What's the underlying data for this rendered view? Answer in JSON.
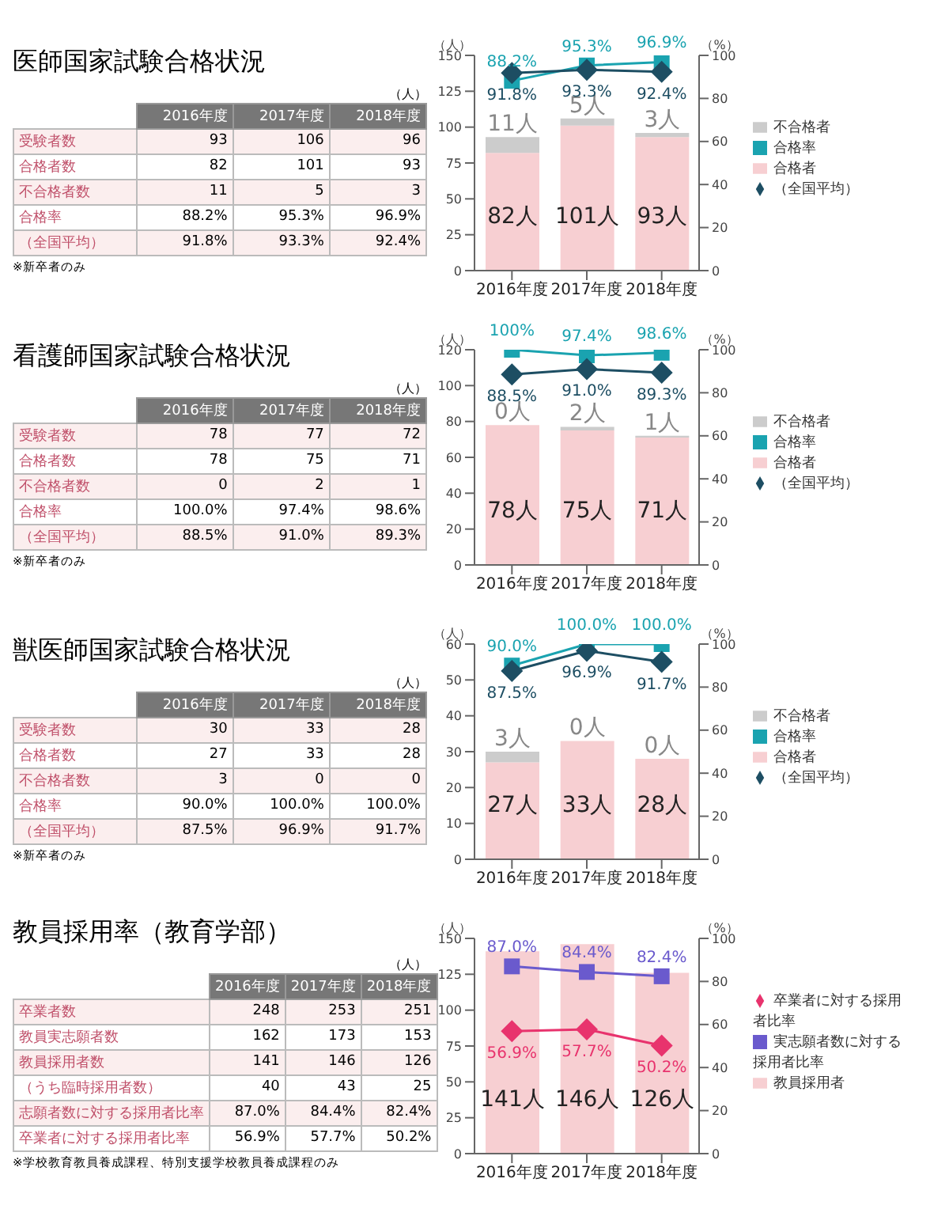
{
  "chart_data": [
    {
      "type": "other",
      "title": "医師国家試験合格状況",
      "categories": [
        "2016年度",
        "2017年度",
        "2018年度"
      ],
      "y_categories": [
        "受験者数",
        "合格者数",
        "不合格者数",
        "合格率",
        "（全国平均）"
      ],
      "cells": [
        [
          "93",
          "106",
          "96"
        ],
        [
          "82",
          "101",
          "93"
        ],
        [
          "11",
          "5",
          "3"
        ],
        [
          "88.2%",
          "95.3%",
          "96.9%"
        ],
        [
          "91.8%",
          "93.3%",
          "92.4%"
        ]
      ],
      "annotations": [
        "（人）",
        "※新卒者のみ"
      ]
    },
    {
      "type": "bar",
      "stacked": true,
      "categories": [
        "2016年度",
        "2017年度",
        "2018年度"
      ],
      "ylabel": "（人）",
      "y2label": "（%）",
      "ylim": [
        0,
        150
      ],
      "yticks": [
        0,
        25,
        50,
        75,
        100,
        125,
        150
      ],
      "y2lim": [
        0,
        100
      ],
      "y2ticks": [
        0,
        20,
        40,
        60,
        80,
        100
      ],
      "legend": "right",
      "series": [
        {
          "name": "合格率",
          "type": "line",
          "axis": "y2",
          "color": "#1aa3b0",
          "marker": "square",
          "values": [
            88.2,
            95.3,
            96.9
          ],
          "value_labels": [
            "88.2%",
            "95.3%",
            "96.9%"
          ]
        },
        {
          "name": "（全国平均）",
          "type": "line",
          "axis": "y2",
          "color": "#1d4e63",
          "marker": "diamond",
          "values": [
            91.8,
            93.3,
            92.4
          ],
          "value_labels": [
            "91.8%",
            "93.3%",
            "92.4%"
          ]
        },
        {
          "name": "合格者",
          "type": "bar",
          "color": "#f7cfd2",
          "values": [
            82,
            101,
            93
          ],
          "value_labels": [
            "82人",
            "101人",
            "93人"
          ]
        },
        {
          "name": "不合格者",
          "type": "bar",
          "color": "#cccccc",
          "values": [
            11,
            5,
            3
          ],
          "value_labels": [
            "11人",
            "5人",
            "3人"
          ]
        }
      ]
    },
    {
      "type": "other",
      "title": "看護師国家試験合格状況",
      "categories": [
        "2016年度",
        "2017年度",
        "2018年度"
      ],
      "y_categories": [
        "受験者数",
        "合格者数",
        "不合格者数",
        "合格率",
        "（全国平均）"
      ],
      "cells": [
        [
          "78",
          "77",
          "72"
        ],
        [
          "78",
          "75",
          "71"
        ],
        [
          "0",
          "2",
          "1"
        ],
        [
          "100.0%",
          "97.4%",
          "98.6%"
        ],
        [
          "88.5%",
          "91.0%",
          "89.3%"
        ]
      ],
      "annotations": [
        "（人）",
        "※新卒者のみ"
      ]
    },
    {
      "type": "bar",
      "stacked": true,
      "categories": [
        "2016年度",
        "2017年度",
        "2018年度"
      ],
      "ylabel": "（人）",
      "y2label": "（%）",
      "ylim": [
        0,
        120
      ],
      "yticks": [
        0,
        20,
        40,
        60,
        80,
        100,
        120
      ],
      "y2lim": [
        0,
        100
      ],
      "y2ticks": [
        0,
        20,
        40,
        60,
        80,
        100
      ],
      "legend": "right",
      "series": [
        {
          "name": "合格率",
          "type": "line",
          "axis": "y2",
          "color": "#1aa3b0",
          "marker": "square",
          "values": [
            100,
            97.4,
            98.6
          ],
          "value_labels": [
            "100%",
            "97.4%",
            "98.6%"
          ]
        },
        {
          "name": "（全国平均）",
          "type": "line",
          "axis": "y2",
          "color": "#1d4e63",
          "marker": "diamond",
          "values": [
            88.5,
            91.0,
            89.3
          ],
          "value_labels": [
            "88.5%",
            "91.0%",
            "89.3%"
          ]
        },
        {
          "name": "合格者",
          "type": "bar",
          "color": "#f7cfd2",
          "values": [
            78,
            75,
            71
          ],
          "value_labels": [
            "78人",
            "75人",
            "71人"
          ]
        },
        {
          "name": "不合格者",
          "type": "bar",
          "color": "#cccccc",
          "values": [
            0,
            2,
            1
          ],
          "value_labels": [
            "0人",
            "2人",
            "1人"
          ]
        }
      ]
    },
    {
      "type": "other",
      "title": "獣医師国家試験合格状況",
      "categories": [
        "2016年度",
        "2017年度",
        "2018年度"
      ],
      "y_categories": [
        "受験者数",
        "合格者数",
        "不合格者数",
        "合格率",
        "（全国平均）"
      ],
      "cells": [
        [
          "30",
          "33",
          "28"
        ],
        [
          "27",
          "33",
          "28"
        ],
        [
          "3",
          "0",
          "0"
        ],
        [
          "90.0%",
          "100.0%",
          "100.0%"
        ],
        [
          "87.5%",
          "96.9%",
          "91.7%"
        ]
      ],
      "annotations": [
        "（人）",
        "※新卒者のみ"
      ]
    },
    {
      "type": "bar",
      "stacked": true,
      "categories": [
        "2016年度",
        "2017年度",
        "2018年度"
      ],
      "ylabel": "（人）",
      "y2label": "（%）",
      "ylim": [
        0,
        60
      ],
      "yticks": [
        0,
        10,
        20,
        30,
        40,
        50,
        60
      ],
      "y2lim": [
        0,
        100
      ],
      "y2ticks": [
        0,
        20,
        40,
        60,
        80,
        100
      ],
      "legend": "right",
      "series": [
        {
          "name": "合格率",
          "type": "line",
          "axis": "y2",
          "color": "#1aa3b0",
          "marker": "square",
          "values": [
            90.0,
            100.0,
            100.0
          ],
          "value_labels": [
            "90.0%",
            "100.0%",
            "100.0%"
          ]
        },
        {
          "name": "（全国平均）",
          "type": "line",
          "axis": "y2",
          "color": "#1d4e63",
          "marker": "diamond",
          "values": [
            87.5,
            96.9,
            91.7
          ],
          "value_labels": [
            "87.5%",
            "96.9%",
            "91.7%"
          ]
        },
        {
          "name": "合格者",
          "type": "bar",
          "color": "#f7cfd2",
          "values": [
            27,
            33,
            28
          ],
          "value_labels": [
            "27人",
            "33人",
            "28人"
          ]
        },
        {
          "name": "不合格者",
          "type": "bar",
          "color": "#cccccc",
          "values": [
            3,
            0,
            0
          ],
          "value_labels": [
            "3人",
            "0人",
            "0人"
          ]
        }
      ]
    },
    {
      "type": "other",
      "title": "教員採用率（教育学部）",
      "categories": [
        "2016年度",
        "2017年度",
        "2018年度"
      ],
      "y_categories": [
        "卒業者数",
        "教員実志願者数",
        "教員採用者数",
        "（うち臨時採用者数）",
        "志願者数に対する採用者比率",
        "卒業者に対する採用者比率"
      ],
      "cells": [
        [
          "248",
          "253",
          "251"
        ],
        [
          "162",
          "173",
          "153"
        ],
        [
          "141",
          "146",
          "126"
        ],
        [
          "40",
          "43",
          "25"
        ],
        [
          "87.0%",
          "84.4%",
          "82.4%"
        ],
        [
          "56.9%",
          "57.7%",
          "50.2%"
        ]
      ],
      "annotations": [
        "（人）",
        "※学校教育教員養成課程、特別支援学校教員養成課程のみ"
      ]
    },
    {
      "type": "bar",
      "categories": [
        "2016年度",
        "2017年度",
        "2018年度"
      ],
      "ylabel": "（人）",
      "y2label": "（%）",
      "ylim": [
        0,
        150
      ],
      "yticks": [
        0,
        25,
        50,
        75,
        100,
        125,
        150
      ],
      "y2lim": [
        0,
        100
      ],
      "y2ticks": [
        0,
        20,
        40,
        60,
        80,
        100
      ],
      "legend": "right",
      "series": [
        {
          "name": "実志願者数に対する採用者比率",
          "type": "line",
          "axis": "y2",
          "color": "#6a5acd",
          "marker": "square",
          "values": [
            87.0,
            84.4,
            82.4
          ],
          "value_labels": [
            "87.0%",
            "84.4%",
            "82.4%"
          ]
        },
        {
          "name": "卒業者に対する採用者比率",
          "type": "line",
          "axis": "y2",
          "color": "#e8336d",
          "marker": "diamond",
          "values": [
            56.9,
            57.7,
            50.2
          ],
          "value_labels": [
            "56.9%",
            "57.7%",
            "50.2%"
          ]
        },
        {
          "name": "教員採用者",
          "type": "bar",
          "color": "#f7cfd2",
          "values": [
            141,
            146,
            126
          ],
          "value_labels": [
            "141人",
            "146人",
            "126人"
          ]
        }
      ]
    }
  ]
}
